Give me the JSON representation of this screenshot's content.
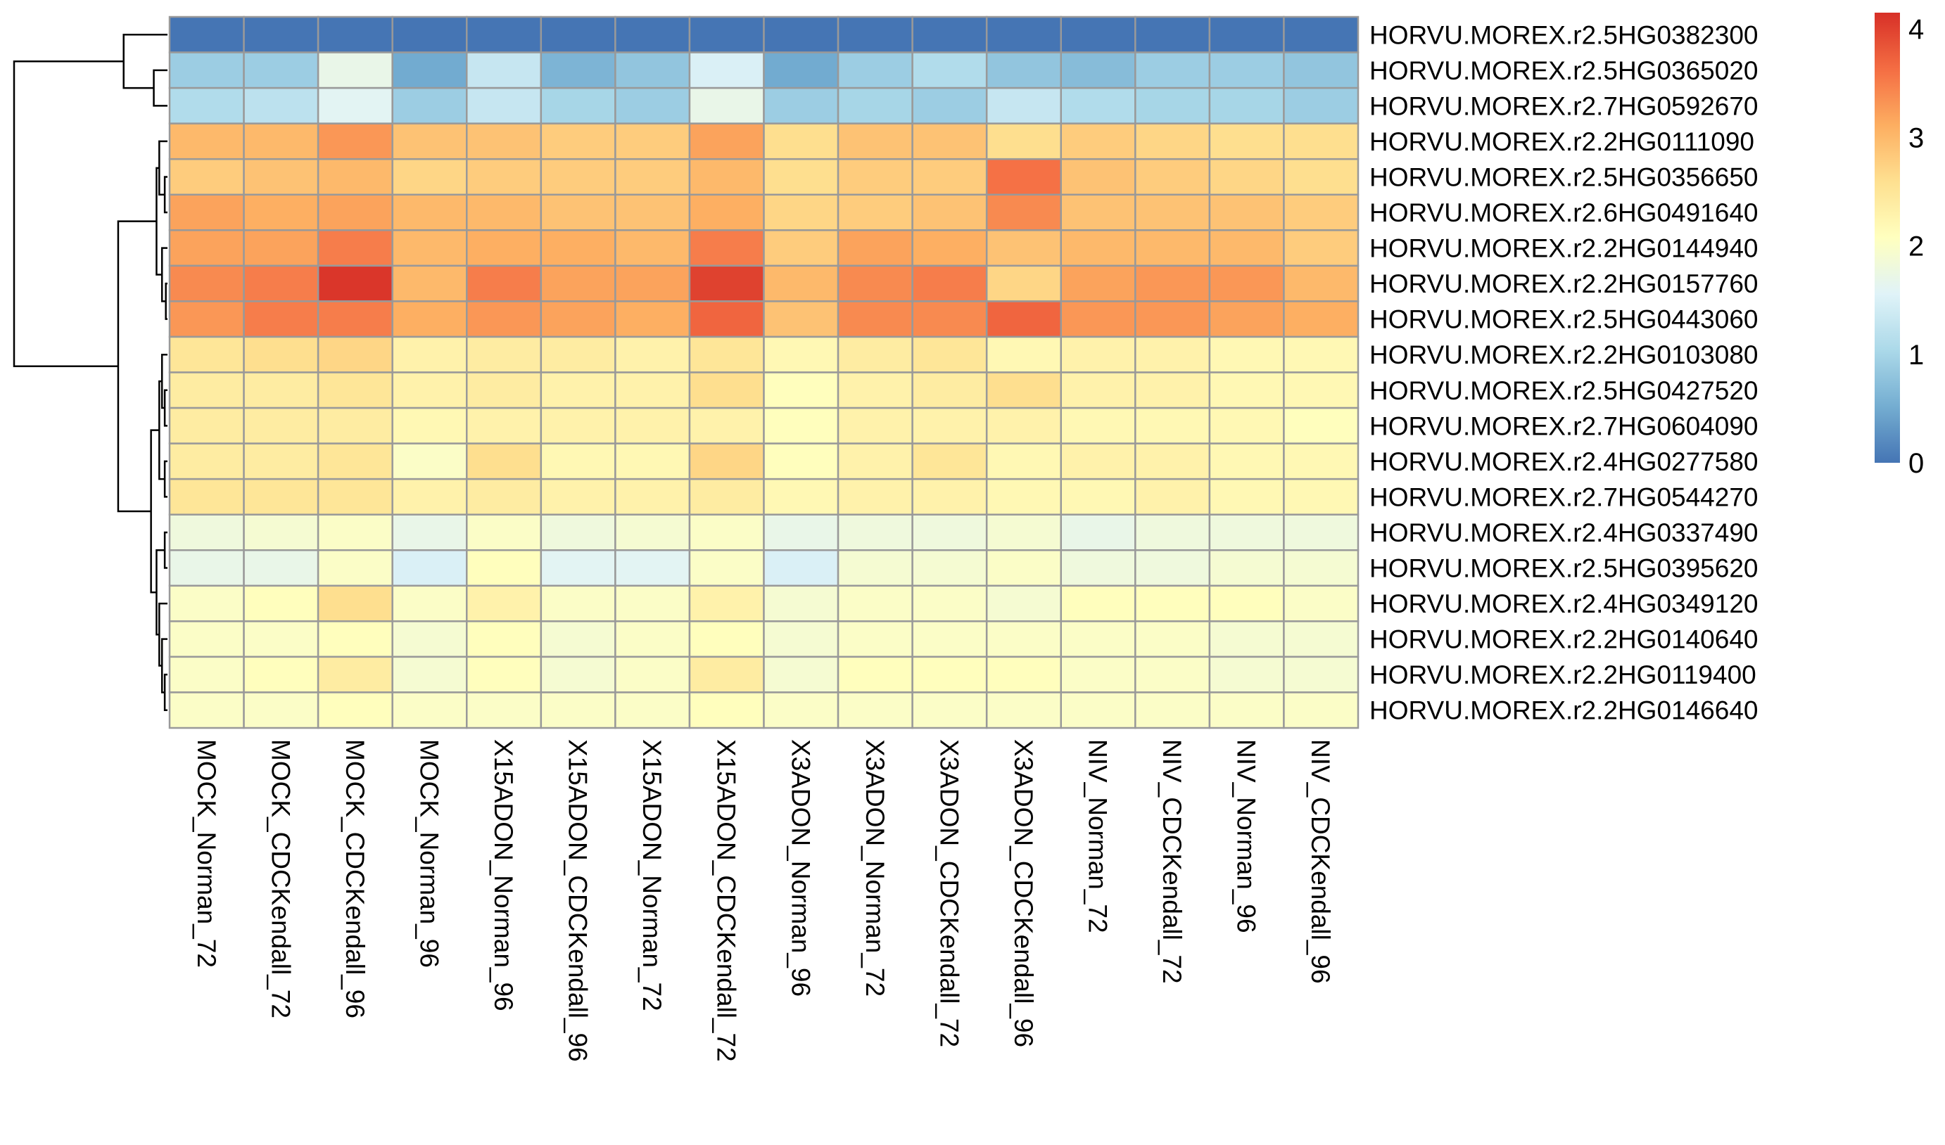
{
  "chart_data": {
    "type": "heatmap",
    "title": "",
    "columns": [
      "MOCK_Norman_72",
      "MOCK_CDCKendall_72",
      "MOCK_CDCKendall_96",
      "MOCK_Norman_96",
      "X15ADON_Norman_96",
      "X15ADON_CDCKendall_96",
      "X15ADON_Norman_72",
      "X15ADON_CDCKendall_72",
      "X3ADON_Norman_96",
      "X3ADON_Norman_72",
      "X3ADON_CDCKendall_72",
      "X3ADON_CDCKendall_96",
      "NIV_Norman_72",
      "NIV_CDCKendall_72",
      "NIV_Norman_96",
      "NIV_CDCKendall_96"
    ],
    "rows": [
      "HORVU.MOREX.r2.5HG0382300",
      "HORVU.MOREX.r2.5HG0365020",
      "HORVU.MOREX.r2.7HG0592670",
      "HORVU.MOREX.r2.2HG0111090",
      "HORVU.MOREX.r2.5HG0356650",
      "HORVU.MOREX.r2.6HG0491640",
      "HORVU.MOREX.r2.2HG0144940",
      "HORVU.MOREX.r2.2HG0157760",
      "HORVU.MOREX.r2.5HG0443060",
      "HORVU.MOREX.r2.2HG0103080",
      "HORVU.MOREX.r2.5HG0427520",
      "HORVU.MOREX.r2.7HG0604090",
      "HORVU.MOREX.r2.4HG0277580",
      "HORVU.MOREX.r2.7HG0544270",
      "HORVU.MOREX.r2.4HG0337490",
      "HORVU.MOREX.r2.5HG0395620",
      "HORVU.MOREX.r2.4HG0349120",
      "HORVU.MOREX.r2.2HG0140640",
      "HORVU.MOREX.r2.2HG0119400",
      "HORVU.MOREX.r2.2HG0146640"
    ],
    "values": [
      [
        0.0,
        0.0,
        0.0,
        0.0,
        0.0,
        0.0,
        0.0,
        0.0,
        0.0,
        0.0,
        0.0,
        0.0,
        0.0,
        0.0,
        0.0,
        0.0
      ],
      [
        0.9,
        0.9,
        1.7,
        0.5,
        1.3,
        0.6,
        0.8,
        1.5,
        0.5,
        0.9,
        1.1,
        0.8,
        0.7,
        0.9,
        0.9,
        0.8
      ],
      [
        1.1,
        1.2,
        1.6,
        0.9,
        1.3,
        1.0,
        0.9,
        1.7,
        0.9,
        1.0,
        0.9,
        1.3,
        1.1,
        1.0,
        1.0,
        0.9
      ],
      [
        3.0,
        3.0,
        3.3,
        2.9,
        2.9,
        2.8,
        2.8,
        3.2,
        2.6,
        2.9,
        2.9,
        2.6,
        2.8,
        2.7,
        2.6,
        2.6
      ],
      [
        2.8,
        2.9,
        3.0,
        2.7,
        2.8,
        2.8,
        2.8,
        3.0,
        2.6,
        2.8,
        2.8,
        3.6,
        2.9,
        2.8,
        2.7,
        2.6
      ],
      [
        3.2,
        3.1,
        3.2,
        3.0,
        3.0,
        2.9,
        2.9,
        3.1,
        2.7,
        2.8,
        2.9,
        3.4,
        2.9,
        2.9,
        2.9,
        2.8
      ],
      [
        3.2,
        3.2,
        3.5,
        3.0,
        3.1,
        3.1,
        3.0,
        3.5,
        2.8,
        3.2,
        3.1,
        2.9,
        3.0,
        3.0,
        3.0,
        2.8
      ],
      [
        3.4,
        3.5,
        4.1,
        3.0,
        3.5,
        3.2,
        3.2,
        4.0,
        3.0,
        3.4,
        3.5,
        2.7,
        3.2,
        3.3,
        3.3,
        3.0
      ],
      [
        3.3,
        3.5,
        3.5,
        3.1,
        3.3,
        3.2,
        3.1,
        3.7,
        2.9,
        3.4,
        3.4,
        3.7,
        3.3,
        3.3,
        3.2,
        3.1
      ],
      [
        2.5,
        2.6,
        2.7,
        2.3,
        2.4,
        2.4,
        2.3,
        2.5,
        2.2,
        2.4,
        2.5,
        2.2,
        2.3,
        2.3,
        2.2,
        2.2
      ],
      [
        2.4,
        2.4,
        2.5,
        2.3,
        2.4,
        2.3,
        2.3,
        2.6,
        2.1,
        2.3,
        2.4,
        2.6,
        2.3,
        2.3,
        2.2,
        2.2
      ],
      [
        2.4,
        2.4,
        2.4,
        2.2,
        2.3,
        2.3,
        2.3,
        2.3,
        2.1,
        2.3,
        2.3,
        2.3,
        2.2,
        2.2,
        2.2,
        2.1
      ],
      [
        2.4,
        2.4,
        2.5,
        2.0,
        2.6,
        2.2,
        2.2,
        2.7,
        2.1,
        2.3,
        2.5,
        2.2,
        2.3,
        2.3,
        2.2,
        2.2
      ],
      [
        2.5,
        2.5,
        2.5,
        2.3,
        2.4,
        2.3,
        2.3,
        2.4,
        2.2,
        2.3,
        2.3,
        2.2,
        2.2,
        2.3,
        2.2,
        2.2
      ],
      [
        1.8,
        1.9,
        2.0,
        1.7,
        2.0,
        1.8,
        1.9,
        2.0,
        1.7,
        1.8,
        1.8,
        1.9,
        1.7,
        1.8,
        1.8,
        1.8
      ],
      [
        1.7,
        1.7,
        2.0,
        1.5,
        2.1,
        1.6,
        1.6,
        2.0,
        1.5,
        1.9,
        1.9,
        2.0,
        1.8,
        1.8,
        1.9,
        1.9
      ],
      [
        2.0,
        2.1,
        2.6,
        2.0,
        2.3,
        2.0,
        2.0,
        2.3,
        1.9,
        2.0,
        2.0,
        1.9,
        2.1,
        2.1,
        2.1,
        2.0
      ],
      [
        2.0,
        2.0,
        2.1,
        1.9,
        2.1,
        1.9,
        2.0,
        2.1,
        1.9,
        2.0,
        2.0,
        2.0,
        2.0,
        2.0,
        1.9,
        1.9
      ],
      [
        2.0,
        2.1,
        2.4,
        1.9,
        2.1,
        1.9,
        2.0,
        2.4,
        1.9,
        2.1,
        2.1,
        2.1,
        2.0,
        2.0,
        1.9,
        1.9
      ],
      [
        2.0,
        2.0,
        2.1,
        2.0,
        2.0,
        2.0,
        2.0,
        2.1,
        2.0,
        2.0,
        2.0,
        2.0,
        2.0,
        2.0,
        2.0,
        2.0
      ]
    ],
    "colorbar": {
      "min": 0,
      "max": 4.15,
      "ticks": [
        "0",
        "1",
        "2",
        "3",
        "4"
      ],
      "tick_values": [
        0,
        1,
        2,
        3,
        4
      ]
    },
    "colors": {
      "low": "#4575b4",
      "mid": "#ffffbf",
      "high": "#d73027",
      "grid": "#999999"
    },
    "row_dendrogram": {
      "order": [
        0,
        1,
        2,
        3,
        4,
        5,
        6,
        7,
        8,
        9,
        10,
        11,
        12,
        13,
        14,
        15,
        16,
        17,
        18,
        19
      ],
      "merges": [
        [
          -2,
          -3,
          0.25
        ],
        [
          -1,
          1,
          0.8
        ],
        [
          -5,
          -6,
          0.05
        ],
        [
          -4,
          3,
          0.15
        ],
        [
          -8,
          -9,
          0.03
        ],
        [
          -7,
          5,
          0.1
        ],
        [
          4,
          6,
          0.2
        ],
        [
          -11,
          -12,
          0.05
        ],
        [
          -13,
          -14,
          0.05
        ],
        [
          -10,
          8,
          0.1
        ],
        [
          9,
          10,
          0.15
        ],
        [
          -15,
          -16,
          0.05
        ],
        [
          -19,
          -20,
          0.05
        ],
        [
          -18,
          13,
          0.1
        ],
        [
          -17,
          14,
          0.15
        ],
        [
          12,
          15,
          0.2
        ],
        [
          11,
          16,
          0.3
        ],
        [
          7,
          17,
          0.9
        ],
        [
          2,
          18,
          2.8
        ]
      ]
    }
  }
}
